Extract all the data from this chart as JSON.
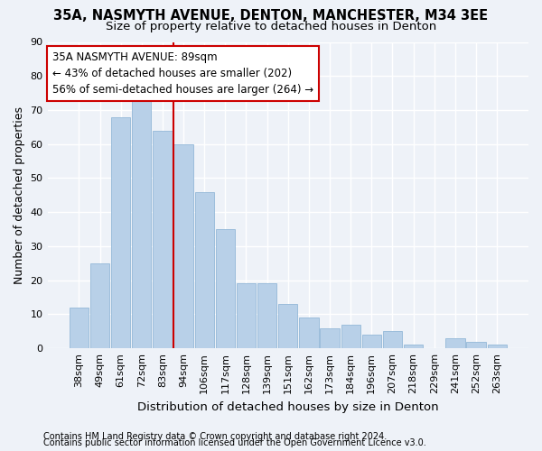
{
  "title1": "35A, NASMYTH AVENUE, DENTON, MANCHESTER, M34 3EE",
  "title2": "Size of property relative to detached houses in Denton",
  "xlabel": "Distribution of detached houses by size in Denton",
  "ylabel": "Number of detached properties",
  "categories": [
    "38sqm",
    "49sqm",
    "61sqm",
    "72sqm",
    "83sqm",
    "94sqm",
    "106sqm",
    "117sqm",
    "128sqm",
    "139sqm",
    "151sqm",
    "162sqm",
    "173sqm",
    "184sqm",
    "196sqm",
    "207sqm",
    "218sqm",
    "229sqm",
    "241sqm",
    "252sqm",
    "263sqm"
  ],
  "values": [
    12,
    25,
    68,
    73,
    64,
    60,
    46,
    35,
    19,
    19,
    13,
    9,
    6,
    7,
    4,
    5,
    1,
    0,
    3,
    2,
    1
  ],
  "bar_color": "#b8d0e8",
  "bar_edge_color": "#93b8d8",
  "vline_x_idx": 4.5,
  "vline_color": "#cc0000",
  "annotation_line1": "35A NASMYTH AVENUE: 89sqm",
  "annotation_line2": "← 43% of detached houses are smaller (202)",
  "annotation_line3": "56% of semi-detached houses are larger (264) →",
  "annotation_box_color": "#ffffff",
  "annotation_box_edge": "#cc0000",
  "ylim_max": 90,
  "yticks": [
    0,
    10,
    20,
    30,
    40,
    50,
    60,
    70,
    80,
    90
  ],
  "footer1": "Contains HM Land Registry data © Crown copyright and database right 2024.",
  "footer2": "Contains public sector information licensed under the Open Government Licence v3.0.",
  "bg_color": "#eef2f8",
  "grid_color": "#ffffff",
  "title1_fontsize": 10.5,
  "title2_fontsize": 9.5,
  "tick_fontsize": 8,
  "axis_label_fontsize": 9,
  "xlabel_fontsize": 9.5,
  "footer_fontsize": 7,
  "annotation_fontsize": 8.5
}
